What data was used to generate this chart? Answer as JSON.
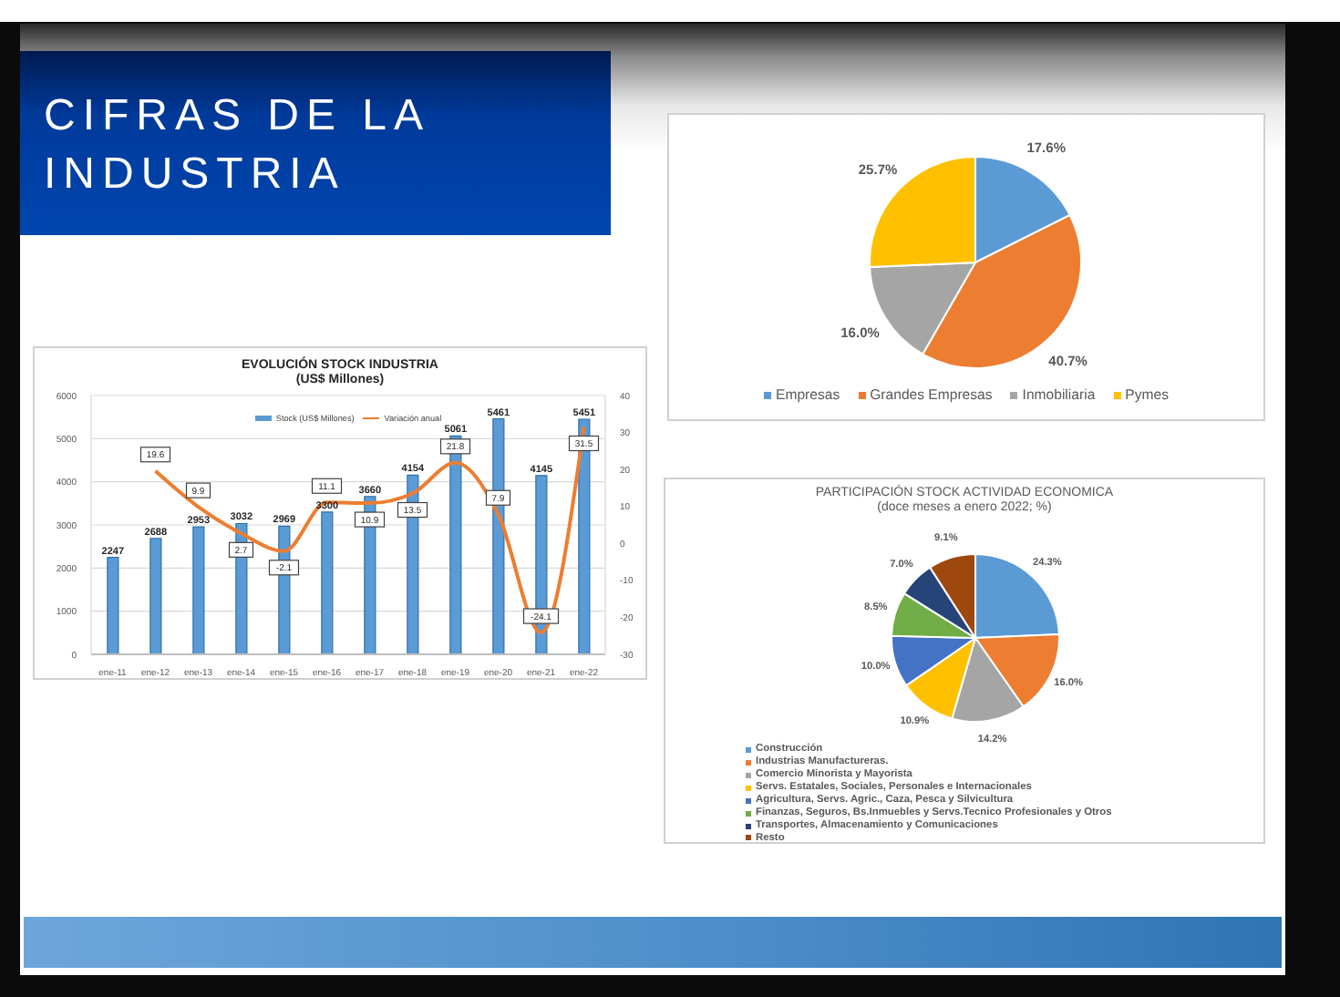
{
  "chart_data": [
    {
      "type": "bar",
      "title": "EVOLUCIÓN STOCK INDUSTRIA",
      "subtitle": "(US$ Millones)",
      "annotations": [
        "CIFRAS DE LA INDUSTRIA"
      ],
      "categories": [
        "ene-11",
        "ene-12",
        "ene-13",
        "ene-14",
        "ene-15",
        "ene-16",
        "ene-17",
        "ene-18",
        "ene-19",
        "ene-20",
        "ene-21",
        "ene-22"
      ],
      "series": [
        {
          "name": "Stock (US$ Millones)",
          "color": "#5b9bd5",
          "values": [
            2247,
            2688,
            2953,
            3032,
            2969,
            3300,
            3660,
            4154,
            5061,
            5461,
            4145,
            5451
          ]
        },
        {
          "name": "Variación anual",
          "type": "line",
          "axis": "y2",
          "color": "#ed7d31",
          "values": [
            null,
            19.6,
            9.9,
            2.7,
            -2.1,
            11.1,
            10.9,
            13.5,
            21.8,
            7.9,
            -24.1,
            31.5
          ]
        }
      ],
      "ylim": [
        0,
        6000
      ],
      "yticks": [
        0,
        1000,
        2000,
        3000,
        4000,
        5000,
        6000
      ],
      "y2lim": [
        -30,
        40
      ],
      "y2ticks": [
        -30,
        -20,
        -10,
        0,
        10,
        20,
        30,
        40
      ],
      "grid": "y",
      "legend": "top",
      "marker": "none",
      "data_labels": true
    },
    {
      "type": "pie",
      "categories": [
        "Empresas",
        "Grandes Empresas",
        "Inmobiliaria",
        "Pymes"
      ],
      "values": [
        17.6,
        40.7,
        16.0,
        25.7
      ],
      "colors": [
        "#5b9bd5",
        "#ed7d31",
        "#a5a5a5",
        "#ffc000"
      ],
      "value_labels": [
        "17.6%",
        "40.7%",
        "16.0%",
        "25.7%"
      ],
      "legend": "bottom"
    },
    {
      "type": "pie",
      "title": "PARTICIPACIÓN STOCK ACTIVIDAD ECONOMICA",
      "subtitle": "(doce meses a enero 2022; %)",
      "categories": [
        "Construcción",
        "Industrias Manufactureras.",
        "Comercio Minorista y Mayorista",
        "Servs. Estatales, Sociales, Personales e Internacionales",
        "Agricultura, Servs. Agric., Caza, Pesca y Silvicultura",
        "Finanzas, Seguros, Bs.Inmuebles y Servs.Tecnico Profesionales y Otros",
        "Transportes, Almacenamiento y Comunicaciones",
        "Resto"
      ],
      "values": [
        24.3,
        16.0,
        14.2,
        10.9,
        10.0,
        8.5,
        7.0,
        9.1
      ],
      "colors": [
        "#5b9bd5",
        "#ed7d31",
        "#a5a5a5",
        "#ffc000",
        "#4472c4",
        "#70ad47",
        "#264478",
        "#9e480e"
      ],
      "value_labels": [
        "24.3%",
        "16.0%",
        "14.2%",
        "10.9%",
        "10.0%",
        "8.5%",
        "7.0%",
        "9.1%"
      ],
      "legend": "bottom left"
    }
  ]
}
